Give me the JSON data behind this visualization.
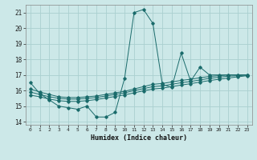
{
  "title": "",
  "xlabel": "Humidex (Indice chaleur)",
  "ylabel": "",
  "background_color": "#cce8e8",
  "grid_color": "#aad0d0",
  "line_color": "#1a6b6b",
  "xlim": [
    -0.5,
    23.5
  ],
  "ylim": [
    13.8,
    21.5
  ],
  "xticks": [
    0,
    1,
    2,
    3,
    4,
    5,
    6,
    7,
    8,
    9,
    10,
    11,
    12,
    13,
    14,
    15,
    16,
    17,
    18,
    19,
    20,
    21,
    22,
    23
  ],
  "yticks": [
    14,
    15,
    16,
    17,
    18,
    19,
    20,
    21
  ],
  "lines": [
    {
      "x": [
        0,
        1,
        2,
        3,
        4,
        5,
        6,
        7,
        8,
        9,
        10,
        11,
        12,
        13,
        14,
        15,
        16,
        17,
        18,
        19,
        20,
        21,
        22,
        23
      ],
      "y": [
        16.5,
        15.8,
        15.4,
        15.0,
        14.9,
        14.8,
        15.0,
        14.3,
        14.3,
        14.6,
        16.8,
        21.0,
        21.2,
        20.3,
        16.4,
        16.2,
        18.4,
        16.6,
        17.5,
        17.0,
        17.0,
        17.0,
        17.0,
        17.0
      ]
    },
    {
      "x": [
        0,
        1,
        2,
        3,
        4,
        5,
        6,
        7,
        8,
        9,
        10,
        11,
        12,
        13,
        14,
        15,
        16,
        17,
        18,
        19,
        20,
        21,
        22,
        23
      ],
      "y": [
        16.1,
        15.9,
        15.75,
        15.6,
        15.55,
        15.55,
        15.6,
        15.65,
        15.75,
        15.85,
        15.95,
        16.1,
        16.25,
        16.4,
        16.45,
        16.55,
        16.65,
        16.72,
        16.82,
        16.9,
        16.95,
        17.0,
        17.0,
        17.0
      ]
    },
    {
      "x": [
        0,
        1,
        2,
        3,
        4,
        5,
        6,
        7,
        8,
        9,
        10,
        11,
        12,
        13,
        14,
        15,
        16,
        17,
        18,
        19,
        20,
        21,
        22,
        23
      ],
      "y": [
        15.9,
        15.75,
        15.6,
        15.5,
        15.45,
        15.45,
        15.5,
        15.55,
        15.65,
        15.75,
        15.85,
        16.0,
        16.12,
        16.25,
        16.3,
        16.4,
        16.5,
        16.58,
        16.68,
        16.78,
        16.85,
        16.92,
        16.95,
        17.0
      ]
    },
    {
      "x": [
        0,
        1,
        2,
        3,
        4,
        5,
        6,
        7,
        8,
        9,
        10,
        11,
        12,
        13,
        14,
        15,
        16,
        17,
        18,
        19,
        20,
        21,
        22,
        23
      ],
      "y": [
        15.7,
        15.6,
        15.45,
        15.35,
        15.3,
        15.3,
        15.35,
        15.42,
        15.52,
        15.62,
        15.72,
        15.85,
        15.98,
        16.1,
        16.15,
        16.25,
        16.35,
        16.44,
        16.54,
        16.64,
        16.72,
        16.8,
        16.88,
        16.95
      ]
    }
  ]
}
